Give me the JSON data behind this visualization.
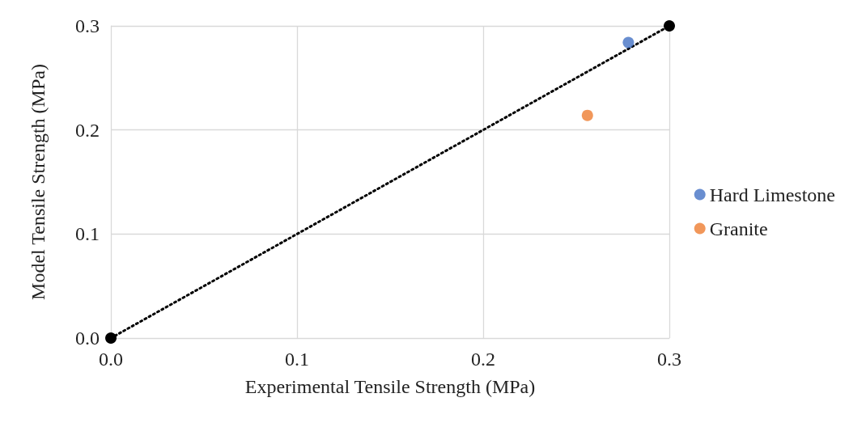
{
  "chart_data": {
    "type": "scatter",
    "xlabel": "Experimental Tensile Strength (MPa)",
    "ylabel": "Model Tensile Strength (MPa)",
    "xlim": [
      0,
      0.3
    ],
    "xticks": [
      {
        "value": 0,
        "label": "0.0"
      },
      0.1,
      0.2,
      0.3
    ],
    "ylim": [
      0,
      0.3
    ],
    "yticks": [
      {
        "value": 0,
        "label": "0.0"
      },
      0.1,
      0.2,
      0.3
    ],
    "grid": true,
    "legend": "right",
    "marker": "circle",
    "series": [
      {
        "name": "Hard Limestone",
        "color": "#4472c4",
        "x": [
          0.278
        ],
        "values": [
          0.284
        ]
      },
      {
        "name": "Granite",
        "color": "#ed7d31",
        "x": [
          0.256
        ],
        "values": [
          0.214
        ]
      },
      {
        "type": "line",
        "color": "#000000",
        "line_style": "dotted",
        "x": [
          0,
          0.3
        ],
        "values": [
          0,
          0.3
        ]
      }
    ]
  }
}
